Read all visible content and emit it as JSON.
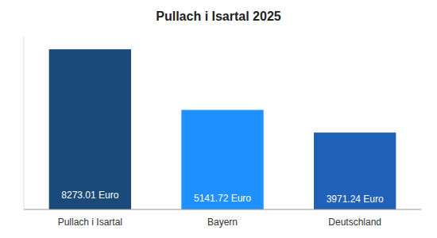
{
  "chart_data": {
    "type": "bar",
    "title": "Pullach i Isartal 2025",
    "categories": [
      "Pullach i Isartal",
      "Bayern",
      "Deutschland"
    ],
    "values": [
      8273.01,
      5141.72,
      3971.24
    ],
    "value_labels": [
      "8273.01 Euro",
      "5141.72 Euro",
      "3971.24 Euro"
    ],
    "colors": [
      "#1a4a7a",
      "#1e90ff",
      "#2060b8"
    ],
    "ylim": [
      0,
      8934.8508
    ],
    "data_labels": true,
    "tick_labels": "x",
    "grid": false
  }
}
